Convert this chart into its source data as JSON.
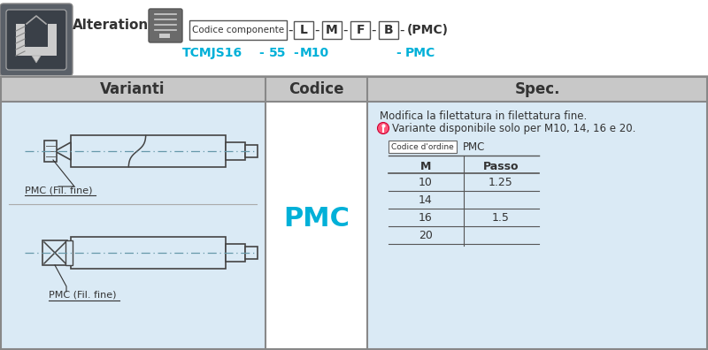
{
  "bg_color": "#ffffff",
  "header_bg": "#c8c8c8",
  "table_bg": "#daeaf5",
  "cyan_color": "#00b0d8",
  "dark_gray": "#333333",
  "mid_gray": "#666666",
  "spec_line1": "Modifica la filettatura in filettatura fine.",
  "spec_line2": "Variante disponibile solo per M10, 14, 16 e 20.",
  "order_code_label": "Codice d’ordine",
  "order_code_value": "PMC",
  "table_headers": [
    "M",
    "Passo"
  ],
  "table_rows": [
    [
      "10",
      "1.25"
    ],
    [
      "14",
      ""
    ],
    [
      "16",
      "1.5"
    ],
    [
      "20",
      ""
    ]
  ],
  "pmc_fil_fine": "PMC (Fil. fine)"
}
